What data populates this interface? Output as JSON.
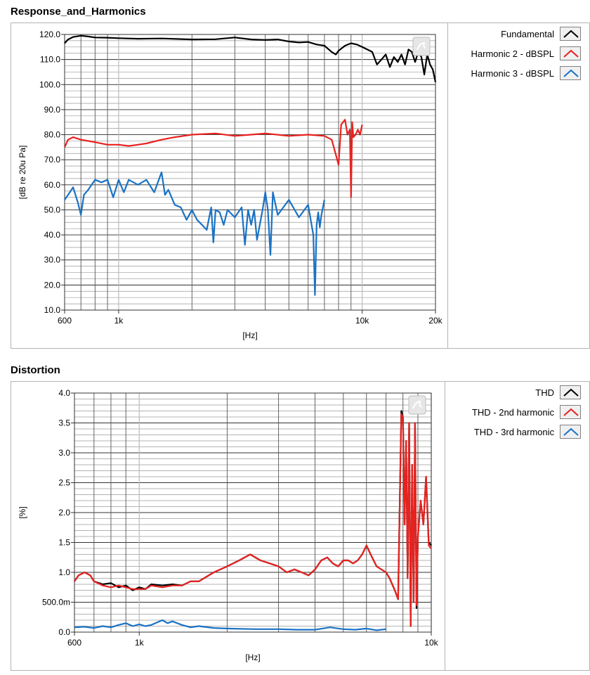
{
  "chart_data": [
    {
      "type": "line",
      "title": "Response_and_Harmonics",
      "xlabel": "[Hz]",
      "ylabel": "[dB re 20u Pa]",
      "xscale": "log",
      "xlim": [
        600,
        20000
      ],
      "ylim": [
        10,
        120
      ],
      "xticks": [
        {
          "v": 600,
          "label": "600"
        },
        {
          "v": 1000,
          "label": "1k"
        },
        {
          "v": 10000,
          "label": "10k"
        },
        {
          "v": 20000,
          "label": "20k"
        }
      ],
      "yticks": [
        {
          "v": 10,
          "label": "10.0"
        },
        {
          "v": 20,
          "label": "20.0"
        },
        {
          "v": 30,
          "label": "30.0"
        },
        {
          "v": 40,
          "label": "40.0"
        },
        {
          "v": 50,
          "label": "50.0"
        },
        {
          "v": 60,
          "label": "60.0"
        },
        {
          "v": 70,
          "label": "70.0"
        },
        {
          "v": 80,
          "label": "80.0"
        },
        {
          "v": 90,
          "label": "90.0"
        },
        {
          "v": 100,
          "label": "100.0"
        },
        {
          "v": 110,
          "label": "110.0"
        },
        {
          "v": 120,
          "label": "120.0"
        }
      ],
      "grid": true,
      "legend_position": "right",
      "series": [
        {
          "name": "Fundamental",
          "color": "#000000",
          "x": [
            600,
            620,
            650,
            700,
            750,
            800,
            900,
            1000,
            1200,
            1500,
            2000,
            2500,
            3000,
            3500,
            4000,
            4500,
            5000,
            5500,
            6000,
            6500,
            7000,
            7500,
            7800,
            8000,
            8500,
            9000,
            9500,
            10000,
            10500,
            11000,
            11500,
            12000,
            12500,
            13000,
            13500,
            14000,
            14500,
            15000,
            15500,
            16000,
            16500,
            17000,
            17500,
            18000,
            18500,
            19000,
            19500,
            20000
          ],
          "y": [
            116.5,
            118,
            119,
            119.5,
            119.2,
            118.8,
            118.7,
            118.5,
            118.3,
            118.4,
            118,
            118.1,
            118.8,
            118,
            117.8,
            118,
            117.2,
            116.8,
            117,
            116,
            115.5,
            113,
            112,
            113.5,
            115.5,
            116.5,
            116,
            115,
            114,
            113,
            108,
            110,
            112,
            107,
            111,
            109,
            112,
            108,
            114,
            113,
            109,
            113,
            111,
            104,
            112,
            108,
            106,
            101
          ]
        },
        {
          "name": "Harmonic 2 - dBSPL",
          "color": "#e8221f",
          "x": [
            600,
            620,
            650,
            700,
            750,
            800,
            900,
            1000,
            1100,
            1200,
            1300,
            1500,
            1700,
            2000,
            2500,
            3000,
            3500,
            4000,
            5000,
            6000,
            7000,
            7500,
            7800,
            8000,
            8200,
            8500,
            8700,
            8900,
            9000,
            9100,
            9200,
            9400,
            9600,
            9800,
            10000
          ],
          "y": [
            75,
            78,
            79,
            78,
            77.5,
            77,
            76,
            76,
            75.5,
            76,
            76.5,
            78,
            79,
            80,
            80.5,
            79.5,
            80,
            80.5,
            79.5,
            80,
            79.5,
            78,
            72,
            68,
            84,
            86,
            80,
            82,
            55,
            85,
            79,
            80,
            82,
            80,
            84
          ]
        },
        {
          "name": "Harmonic 3 - dBSPL",
          "color": "#1a72c4",
          "x": [
            600,
            620,
            650,
            680,
            700,
            720,
            750,
            800,
            850,
            900,
            950,
            1000,
            1050,
            1100,
            1200,
            1300,
            1400,
            1500,
            1550,
            1600,
            1700,
            1800,
            1900,
            2000,
            2100,
            2200,
            2300,
            2400,
            2450,
            2500,
            2600,
            2700,
            2800,
            3000,
            3200,
            3300,
            3400,
            3500,
            3600,
            3700,
            3900,
            4000,
            4100,
            4200,
            4300,
            4500,
            5000,
            5500,
            6000,
            6200,
            6300,
            6400,
            6500,
            6600,
            6700,
            6800,
            7000
          ],
          "y": [
            54,
            56,
            59,
            53,
            48,
            56,
            58,
            62,
            61,
            62,
            55,
            62,
            57,
            62,
            60,
            62,
            57,
            65,
            56,
            58,
            52,
            51,
            46,
            50,
            46,
            44,
            42,
            51,
            37,
            50,
            49,
            44,
            50,
            47,
            51,
            36,
            50,
            44,
            50,
            38,
            50,
            57,
            50,
            32,
            57,
            48,
            54,
            47,
            52,
            44,
            40,
            16,
            44,
            49,
            43,
            48,
            54
          ]
        }
      ]
    },
    {
      "type": "line",
      "title": "Distortion",
      "xlabel": "[Hz]",
      "ylabel": "[%]",
      "xscale": "log",
      "xlim": [
        600,
        10000
      ],
      "ylim": [
        0,
        4.0
      ],
      "xticks": [
        {
          "v": 600,
          "label": "600"
        },
        {
          "v": 1000,
          "label": "1k"
        },
        {
          "v": 10000,
          "label": "10k"
        }
      ],
      "yticks": [
        {
          "v": 0,
          "label": "0.0"
        },
        {
          "v": 0.5,
          "label": "500.0m"
        },
        {
          "v": 1.0,
          "label": "1.0"
        },
        {
          "v": 1.5,
          "label": "1.5"
        },
        {
          "v": 2.0,
          "label": "2.0"
        },
        {
          "v": 2.5,
          "label": "2.5"
        },
        {
          "v": 3.0,
          "label": "3.0"
        },
        {
          "v": 3.5,
          "label": "3.5"
        },
        {
          "v": 4.0,
          "label": "4.0"
        }
      ],
      "grid": true,
      "legend_position": "right",
      "series": [
        {
          "name": "THD",
          "color": "#000000",
          "x": [
            600,
            620,
            650,
            680,
            700,
            750,
            800,
            850,
            900,
            950,
            1000,
            1050,
            1100,
            1200,
            1300,
            1400,
            1500,
            1600,
            1800,
            2000,
            2200,
            2400,
            2600,
            2800,
            3000,
            3200,
            3400,
            3600,
            3800,
            4000,
            4200,
            4400,
            4600,
            4800,
            5000,
            5200,
            5400,
            5600,
            5800,
            6000,
            6200,
            6500,
            7000,
            7200,
            7500,
            7700,
            7900,
            8000,
            8100,
            8200,
            8300,
            8400,
            8500,
            8600,
            8700,
            8800,
            8900,
            9000,
            9200,
            9400,
            9600,
            9800,
            10000
          ],
          "y": [
            0.85,
            0.95,
            1.0,
            0.95,
            0.85,
            0.8,
            0.82,
            0.75,
            0.78,
            0.7,
            0.75,
            0.72,
            0.8,
            0.78,
            0.8,
            0.78,
            0.85,
            0.85,
            1.0,
            1.1,
            1.2,
            1.3,
            1.2,
            1.15,
            1.1,
            1.0,
            1.05,
            1.0,
            0.95,
            1.05,
            1.2,
            1.25,
            1.15,
            1.1,
            1.2,
            1.2,
            1.15,
            1.2,
            1.3,
            1.45,
            1.3,
            1.1,
            1.0,
            0.9,
            0.7,
            0.55,
            3.7,
            3.6,
            1.8,
            3.2,
            0.9,
            3.5,
            0.1,
            2.8,
            0.5,
            3.5,
            0.4,
            1.6,
            2.2,
            1.8,
            2.6,
            1.5,
            1.45
          ]
        },
        {
          "name": "THD - 2nd harmonic",
          "color": "#e8221f",
          "x": [
            600,
            620,
            650,
            680,
            700,
            750,
            800,
            850,
            900,
            950,
            1000,
            1050,
            1100,
            1200,
            1300,
            1400,
            1500,
            1600,
            1800,
            2000,
            2200,
            2400,
            2600,
            2800,
            3000,
            3200,
            3400,
            3600,
            3800,
            4000,
            4200,
            4400,
            4600,
            4800,
            5000,
            5200,
            5400,
            5600,
            5800,
            6000,
            6200,
            6500,
            7000,
            7200,
            7500,
            7700,
            7900,
            8000,
            8100,
            8200,
            8300,
            8400,
            8500,
            8600,
            8700,
            8800,
            8900,
            9000,
            9200,
            9400,
            9600,
            9800,
            10000
          ],
          "y": [
            0.85,
            0.95,
            1.0,
            0.95,
            0.85,
            0.78,
            0.75,
            0.78,
            0.75,
            0.72,
            0.72,
            0.72,
            0.78,
            0.75,
            0.78,
            0.78,
            0.85,
            0.85,
            1.0,
            1.1,
            1.2,
            1.3,
            1.2,
            1.15,
            1.1,
            1.0,
            1.05,
            1.0,
            0.95,
            1.05,
            1.2,
            1.25,
            1.15,
            1.1,
            1.2,
            1.2,
            1.15,
            1.2,
            1.3,
            1.45,
            1.3,
            1.1,
            1.0,
            0.9,
            0.7,
            0.55,
            3.65,
            3.6,
            1.8,
            3.2,
            0.9,
            3.5,
            0.1,
            2.8,
            0.5,
            3.5,
            0.45,
            1.6,
            2.2,
            1.8,
            2.6,
            1.45,
            1.4
          ]
        },
        {
          "name": "THD - 3rd harmonic",
          "color": "#1a72c4",
          "x": [
            600,
            650,
            700,
            750,
            800,
            850,
            900,
            950,
            1000,
            1050,
            1100,
            1200,
            1250,
            1300,
            1400,
            1500,
            1600,
            1800,
            2000,
            2500,
            3000,
            3500,
            4000,
            4500,
            5000,
            5500,
            6000,
            6500,
            7000
          ],
          "y": [
            0.08,
            0.09,
            0.07,
            0.1,
            0.08,
            0.12,
            0.15,
            0.1,
            0.13,
            0.1,
            0.12,
            0.2,
            0.15,
            0.18,
            0.12,
            0.08,
            0.1,
            0.07,
            0.06,
            0.05,
            0.05,
            0.04,
            0.04,
            0.08,
            0.05,
            0.04,
            0.06,
            0.03,
            0.05
          ]
        }
      ]
    }
  ]
}
